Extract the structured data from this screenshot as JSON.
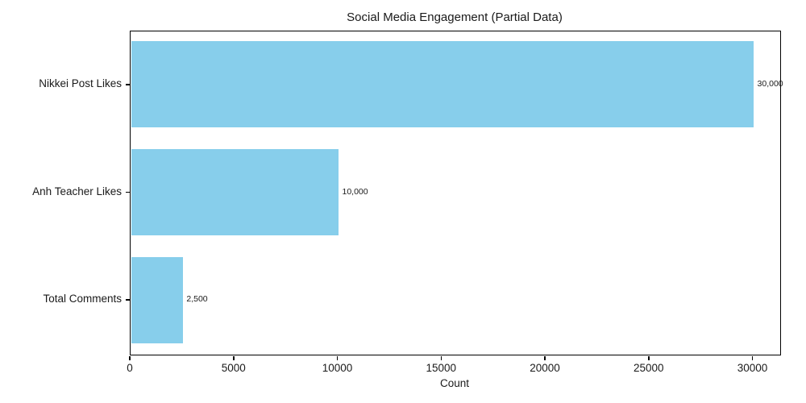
{
  "chart": {
    "title": "Social Media Engagement (Partial Data)",
    "xlabel": "Count"
  },
  "chart_data": {
    "type": "bar",
    "orientation": "horizontal",
    "title": "Social Media Engagement (Partial Data)",
    "xlabel": "Count",
    "ylabel": "",
    "categories": [
      "Nikkei Post Likes",
      "Anh Teacher Likes",
      "Total Comments"
    ],
    "values": [
      30000,
      10000,
      2500
    ],
    "value_labels": [
      "30,000",
      "10,000",
      "2,500"
    ],
    "xticks": [
      0,
      5000,
      10000,
      15000,
      20000,
      25000,
      30000
    ],
    "xtick_labels": [
      "0",
      "5000",
      "10000",
      "15000",
      "20000",
      "25000",
      "30000"
    ],
    "xlim": [
      0,
      31300
    ],
    "grid": false,
    "legend": null,
    "bar_color": "#87CEEB",
    "spine_color": "#000000",
    "text_color": "#1a1a1a",
    "background_color": "#ffffff"
  }
}
